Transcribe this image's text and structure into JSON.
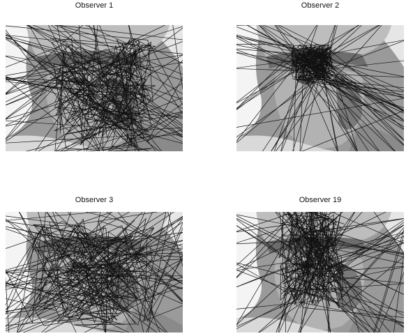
{
  "panels": [
    {
      "title": "Observer 1"
    },
    {
      "title": "Observer 2"
    },
    {
      "title": "Observer 3"
    },
    {
      "title": "Observer 19"
    }
  ]
}
